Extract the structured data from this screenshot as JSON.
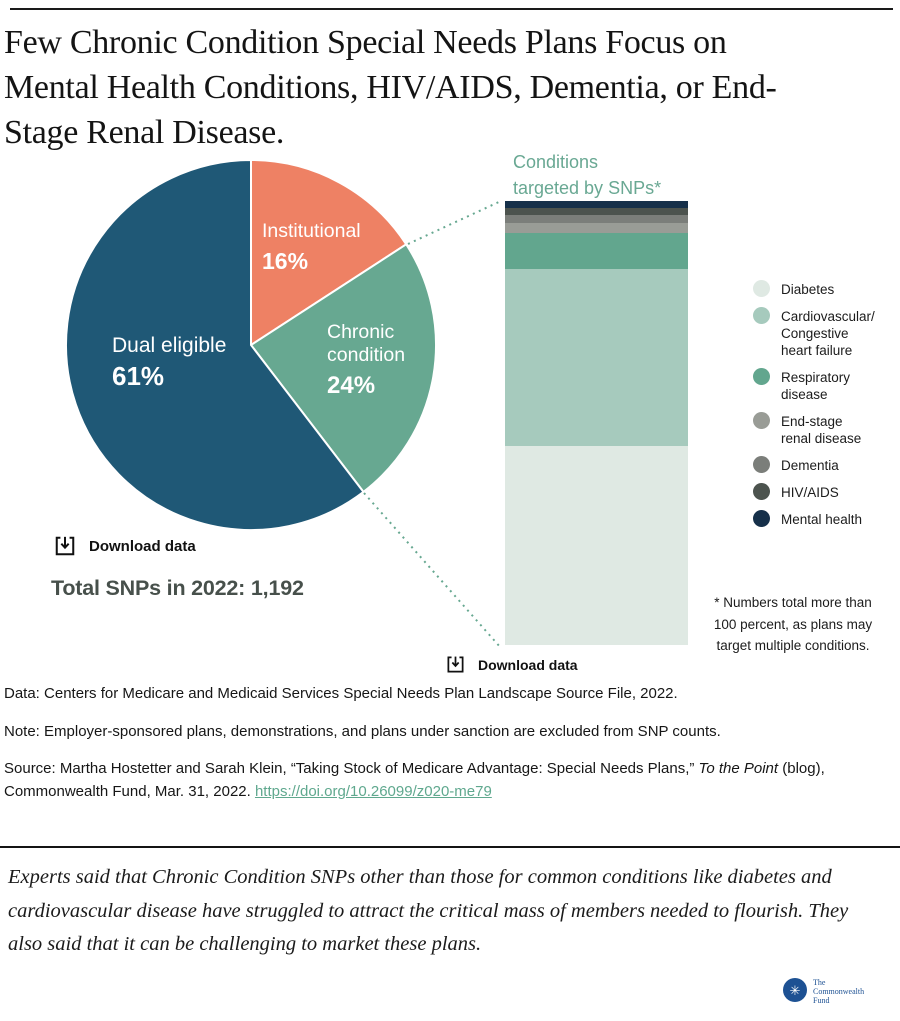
{
  "header": {
    "title_lines": [
      "Few Chronic Condition Special Needs Plans Focus on",
      "Mental Health Conditions, HIV/AIDS, Dementia, or End-",
      "Stage Renal Disease."
    ]
  },
  "colors": {
    "link_teal": "#5FA88E",
    "bar_heading_teal": "#69A893",
    "callout_dotted": "#67A891",
    "logo_blue": "#1D5193"
  },
  "pie": {
    "slices": [
      {
        "label": "Institutional",
        "pct_label": "16%",
        "value": 16,
        "color": "#EE8164"
      },
      {
        "label": "Chronic condition",
        "pct_label": "24%",
        "value": 24,
        "color": "#67A891"
      },
      {
        "label": "Dual eligible",
        "pct_label": "61%",
        "value": 61,
        "color": "#1F5876"
      }
    ],
    "download_label": "Download data",
    "total_label": "Total SNPs in 2022: 1,192"
  },
  "bar": {
    "title_lines": [
      "Conditions",
      "targeted by SNPs*"
    ],
    "download_label": "Download data",
    "footnote": "* Numbers total more than 100 percent, as plans may target multiple conditions.",
    "segments_top_to_bottom": [
      {
        "label": "Mental health",
        "value": 1.6,
        "color": "#16304A"
      },
      {
        "label": "HIV/AIDS",
        "value": 1.6,
        "color": "#4C534E"
      },
      {
        "label": "Dementia",
        "value": 1.8,
        "color": "#7B7E7A"
      },
      {
        "label": "End-stage renal disease",
        "value": 2.3,
        "color": "#999C96"
      },
      {
        "label": "Respiratory disease",
        "value": 8,
        "color": "#62A68E"
      },
      {
        "label": "Cardiovascular/Congestive heart failure",
        "value": 40,
        "color": "#A6CABD"
      },
      {
        "label": "Diabetes",
        "value": 45,
        "color": "#DFE9E3"
      }
    ]
  },
  "legend": {
    "items": [
      {
        "label": "Diabetes",
        "color": "#DFE9E3"
      },
      {
        "label": "Cardiovascular/\nCongestive\nheart failure",
        "color": "#A6CABD"
      },
      {
        "label": "Respiratory\ndisease",
        "color": "#62A68E"
      },
      {
        "label": "End-stage\nrenal disease",
        "color": "#999C96"
      },
      {
        "label": "Dementia",
        "color": "#7B7E7A"
      },
      {
        "label": "HIV/AIDS",
        "color": "#4C534E"
      },
      {
        "label": "Mental health",
        "color": "#16304A"
      }
    ]
  },
  "footer": {
    "data_line": "Data: Centers for Medicare and Medicaid Services Special Needs Plan Landscape Source File, 2022.",
    "note_line": "Note: Employer-sponsored plans, demonstrations, and plans under sanction are excluded from SNP counts.",
    "source_prefix": "Source: Martha Hostetter and Sarah Klein, “Taking Stock of Medicare Advantage: Special Needs Plans,” ",
    "source_italic": "To the Point",
    "source_mid": " (blog), Commonwealth Fund, Mar. 31, 2022. ",
    "source_link": "https://doi.org/10.26099/z020-me79"
  },
  "quote": {
    "text": "Experts said that Chronic Condition SNPs other than those for common conditions like diabetes and cardiovascular disease have struggled to attract the critical mass of members needed to flourish. They also said that it can be challenging to market these plans."
  },
  "logo": {
    "mark": "✳",
    "org_lines": [
      "The",
      "Commonwealth",
      "Fund"
    ]
  },
  "chart_data": [
    {
      "type": "pie",
      "title": "Total SNPs in 2022: 1,192",
      "labels": [
        "Institutional",
        "Chronic condition",
        "Dual eligible"
      ],
      "values": [
        16,
        24,
        61
      ],
      "unit": "percent of SNPs",
      "start": "12 o'clock, clockwise",
      "colors": [
        "#EE8164",
        "#67A891",
        "#1F5876"
      ]
    },
    {
      "type": "bar",
      "subtype": "single stacked column",
      "title": "Conditions targeted by SNPs*",
      "categories": [
        "Diabetes",
        "Cardiovascular/Congestive heart failure",
        "Respiratory disease",
        "End-stage renal disease",
        "Dementia",
        "HIV/AIDS",
        "Mental health"
      ],
      "values_pct_estimated": [
        45,
        40,
        8,
        2.3,
        1.8,
        1.6,
        1.6
      ],
      "legend_position": "right",
      "grid": false,
      "annotation": "* Numbers total more than 100 percent, as plans may target multiple conditions."
    }
  ]
}
